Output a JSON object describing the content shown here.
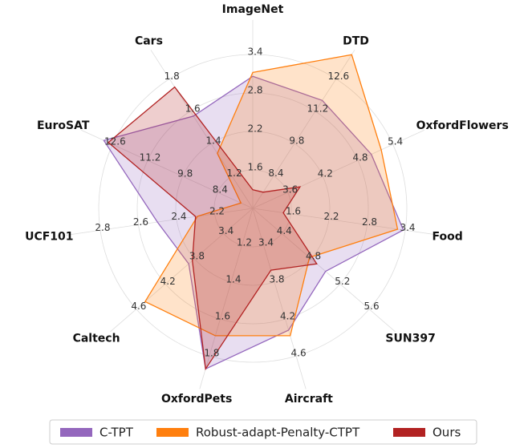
{
  "chart_data": {
    "type": "radar",
    "axes": [
      {
        "name": "ImageNet",
        "lim": [
          1.0,
          3.4
        ],
        "ticks": [
          1.6,
          2.2,
          2.8,
          3.4
        ]
      },
      {
        "name": "DTD",
        "lim": [
          7.0,
          12.6
        ],
        "ticks": [
          8.4,
          9.8,
          11.2,
          12.6
        ]
      },
      {
        "name": "OxfordFlowers",
        "lim": [
          3.0,
          5.4
        ],
        "ticks": [
          3.6,
          4.2,
          4.8,
          5.4
        ]
      },
      {
        "name": "Food",
        "lim": [
          1.0,
          3.4
        ],
        "ticks": [
          1.6,
          2.2,
          2.8,
          3.4
        ]
      },
      {
        "name": "SUN397",
        "lim": [
          4.0,
          5.6
        ],
        "ticks": [
          4.4,
          4.8,
          5.2,
          5.6
        ]
      },
      {
        "name": "Aircraft",
        "lim": [
          3.0,
          4.6
        ],
        "ticks": [
          3.4,
          3.8,
          4.2,
          4.6
        ]
      },
      {
        "name": "OxfordPets",
        "lim": [
          1.0,
          1.8
        ],
        "ticks": [
          1.2,
          1.4,
          1.6,
          1.8
        ]
      },
      {
        "name": "Caltech",
        "lim": [
          3.0,
          4.6
        ],
        "ticks": [
          3.4,
          3.8,
          4.2,
          4.6
        ]
      },
      {
        "name": "UCF101",
        "lim": [
          2.0,
          2.8
        ],
        "ticks": [
          2.2,
          2.4,
          2.6,
          2.8
        ]
      },
      {
        "name": "EuroSAT",
        "lim": [
          7.0,
          12.6
        ],
        "ticks": [
          8.4,
          9.8,
          11.2,
          12.6
        ]
      },
      {
        "name": "Cars",
        "lim": [
          1.0,
          1.8
        ],
        "ticks": [
          1.2,
          1.4,
          1.6,
          1.8
        ]
      }
    ],
    "series": [
      {
        "name": "C-TPT",
        "color": "#9467bd",
        "values": [
          3.06,
          11.67,
          5.03,
          3.37,
          5.0,
          4.32,
          1.87,
          3.88,
          2.5,
          12.95,
          1.57
        ]
      },
      {
        "name": "Robust-adapt-Penalty-CTPT",
        "color": "#ff7f0e",
        "values": [
          3.12,
          13.65,
          5.2,
          3.28,
          4.78,
          4.38,
          1.69,
          4.48,
          2.29,
          7.47,
          1.34
        ]
      },
      {
        "name": "Ours",
        "color": "#b22222",
        "values": [
          1.29,
          7.7,
          3.81,
          1.48,
          4.88,
          3.67,
          1.87,
          3.83,
          2.3,
          12.77,
          1.75
        ]
      }
    ],
    "grid": true,
    "legend": "bottom"
  }
}
